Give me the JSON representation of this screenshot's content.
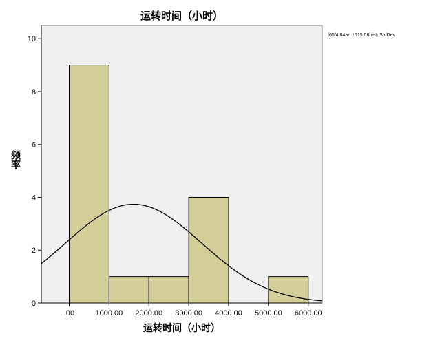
{
  "chart_data": {
    "type": "histogram",
    "title": "运转时间（小时）",
    "xlabel": "运转时间（小时）",
    "ylabel": "频率",
    "xlim": [
      -700,
      6350
    ],
    "ylim": [
      0,
      10.5
    ],
    "x_ticks": [
      ".00",
      "1000.00",
      "2000.00",
      "3000.00",
      "4000.00",
      "5000.00",
      "6000.00"
    ],
    "x_tick_values": [
      0,
      1000,
      2000,
      3000,
      4000,
      5000,
      6000
    ],
    "y_ticks": [
      "0",
      "2",
      "4",
      "6",
      "8",
      "10"
    ],
    "y_tick_values": [
      0,
      2,
      4,
      6,
      8,
      10
    ],
    "bins": [
      {
        "from": 0,
        "to": 1000,
        "count": 9
      },
      {
        "from": 1000,
        "to": 2000,
        "count": 1
      },
      {
        "from": 2000,
        "to": 3000,
        "count": 1
      },
      {
        "from": 3000,
        "to": 4000,
        "count": 4
      },
      {
        "from": 4000,
        "to": 5000,
        "count": 0
      },
      {
        "from": 5000,
        "to": 6000,
        "count": 1
      }
    ],
    "normal_curve": {
      "mean": 1615.08,
      "std_dev": 1707.9,
      "n": 16,
      "bin_width": 1000
    },
    "legend_note": "f65/4t84an.1615.08histoStdDev",
    "colors": {
      "plot_background": "#f0f0f0",
      "bar_fill": "#d3ce98",
      "bar_stroke": "#000000",
      "curve": "#000000"
    },
    "grid": false
  }
}
